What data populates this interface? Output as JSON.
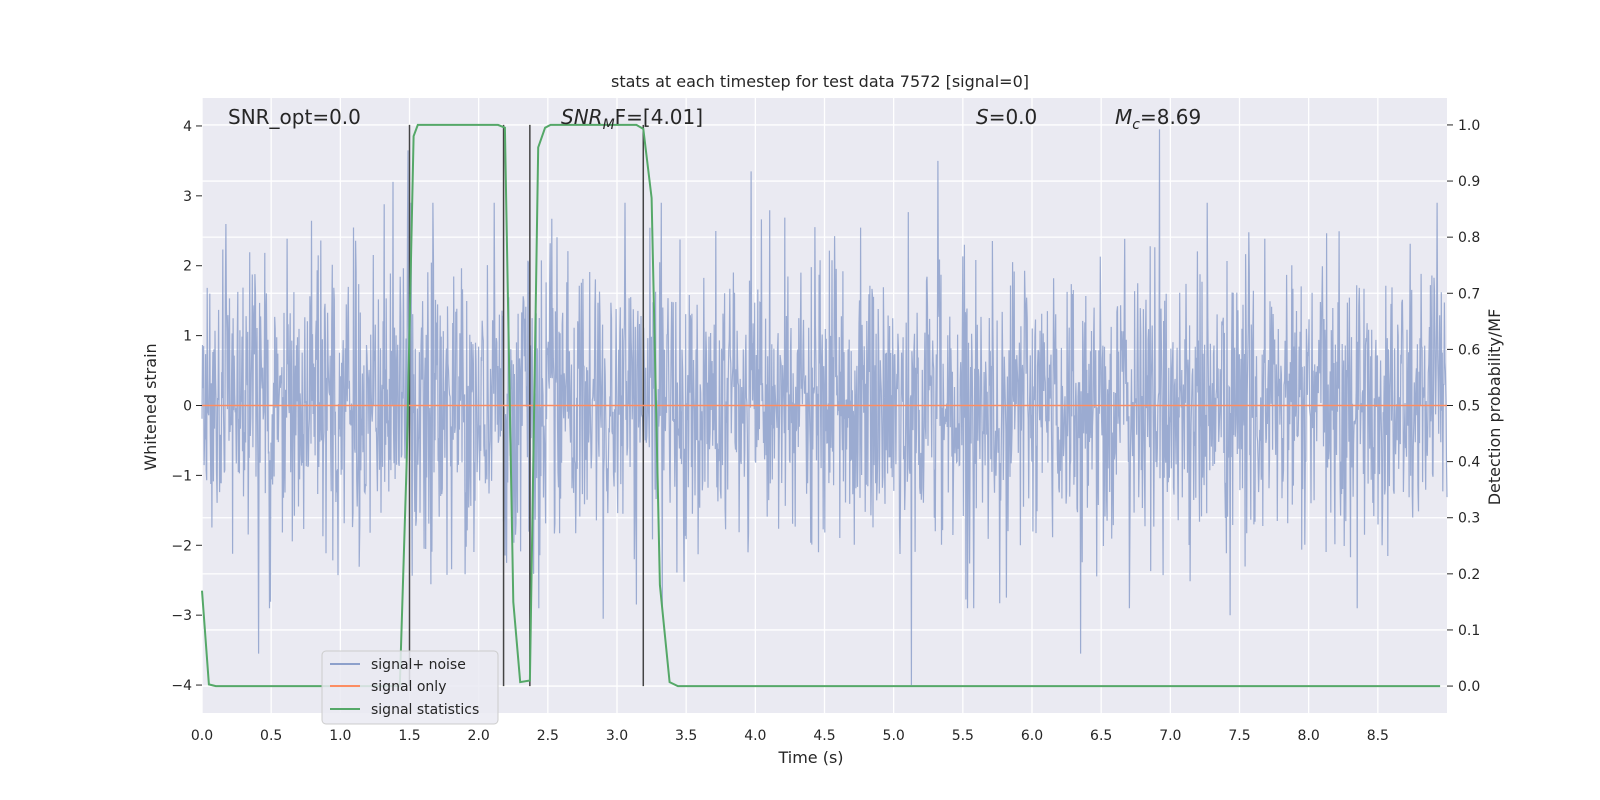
{
  "chart_data": {
    "type": "line",
    "title": "stats at each timestep for test data 7572 [signal=0]",
    "xlabel": "Time (s)",
    "ylabel": "Whitened strain",
    "y2label": "Detection probability/MF",
    "xlim": [
      0.0,
      9.0
    ],
    "ylim": [
      -4.4,
      4.4
    ],
    "y2lim": [
      -0.048,
      1.048
    ],
    "xticks": [
      "0.0",
      "0.5",
      "1.0",
      "1.5",
      "2.0",
      "2.5",
      "3.0",
      "3.5",
      "4.0",
      "4.5",
      "5.0",
      "5.5",
      "6.0",
      "6.5",
      "7.0",
      "7.5",
      "8.0",
      "8.5"
    ],
    "yticks": [
      "4",
      "3",
      "2",
      "1",
      "0",
      "−1",
      "−2",
      "−3",
      "−4"
    ],
    "y2ticks": [
      "1.0",
      "0.9",
      "0.8",
      "0.7",
      "0.6",
      "0.5",
      "0.4",
      "0.3",
      "0.2",
      "0.1",
      "0.0"
    ],
    "grid": true,
    "legend_placement": "lower-left",
    "annotations": {
      "snr_opt": "SNR_opt=0.0",
      "snr_mf_base": "SNR",
      "snr_mf_sub": "M",
      "snr_mf_rest": "F=[4.01]",
      "s_var": "S",
      "s_rest": "=0.0",
      "mc_var": "M",
      "mc_sub": "c",
      "mc_rest": "=8.69"
    },
    "series": [
      {
        "name": "signal+ noise",
        "color": "#8da0cb",
        "description_values": "whitened strain noise, roughly gaussian in [-4, 4]",
        "spikes": [
          {
            "x": 0.41,
            "y": -3.55
          },
          {
            "x": 1.38,
            "y": 3.2
          },
          {
            "x": 1.49,
            "y": 3.65
          },
          {
            "x": 2.37,
            "y": -3.5
          },
          {
            "x": 2.9,
            "y": -3.05
          },
          {
            "x": 3.97,
            "y": 3.35
          },
          {
            "x": 5.13,
            "y": -4.0
          },
          {
            "x": 5.32,
            "y": 3.5
          },
          {
            "x": 6.35,
            "y": -3.55
          },
          {
            "x": 6.92,
            "y": 3.95
          },
          {
            "x": 7.43,
            "y": -3.0
          }
        ]
      },
      {
        "name": "signal only",
        "color": "#fc8d62",
        "values_constant": 0.0
      },
      {
        "name": "signal statistics",
        "color": "#55a868",
        "axis": "right",
        "points": [
          [
            0.0,
            0.17
          ],
          [
            0.05,
            0.003
          ],
          [
            0.1,
            0.0
          ],
          [
            1.43,
            0.0
          ],
          [
            1.48,
            0.4
          ],
          [
            1.53,
            0.98
          ],
          [
            1.56,
            1.0
          ],
          [
            2.14,
            1.0
          ],
          [
            2.19,
            0.995
          ],
          [
            2.25,
            0.15
          ],
          [
            2.3,
            0.007
          ],
          [
            2.37,
            0.01
          ],
          [
            2.43,
            0.96
          ],
          [
            2.48,
            0.995
          ],
          [
            2.52,
            1.0
          ],
          [
            3.14,
            1.0
          ],
          [
            3.19,
            0.993
          ],
          [
            3.25,
            0.87
          ],
          [
            3.31,
            0.18
          ],
          [
            3.38,
            0.007
          ],
          [
            3.44,
            0.0
          ],
          [
            8.95,
            0.0
          ]
        ]
      }
    ],
    "vertical_markers_x": [
      1.5,
      2.18,
      2.37,
      3.19
    ],
    "vertical_marker_color": "#444444"
  }
}
